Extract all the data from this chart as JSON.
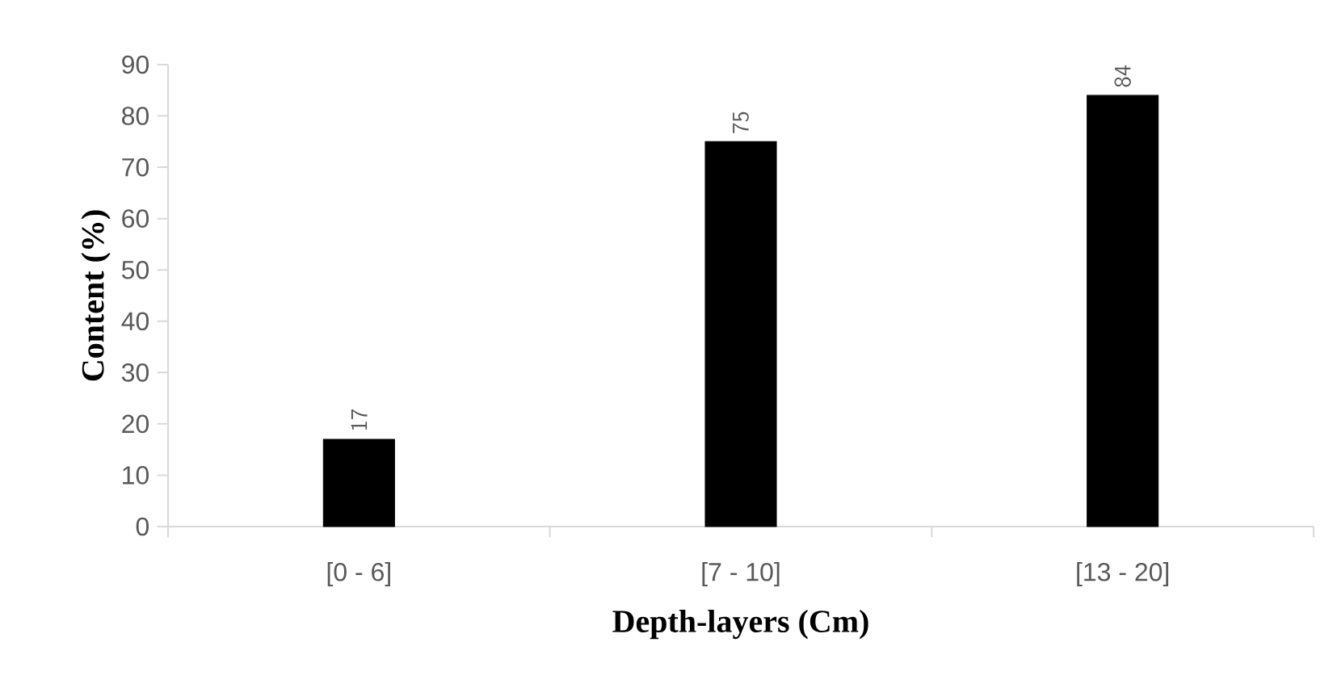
{
  "chart_data": {
    "type": "bar",
    "xlabel": "Depth-layers (Cm)",
    "ylabel": "Content (%)",
    "categories": [
      "[0 - 6]",
      "[7 - 10]",
      "[13 - 20]"
    ],
    "values": [
      17,
      75,
      84
    ],
    "color": "#000000",
    "ylim": [
      0,
      90
    ],
    "yticks": [
      0,
      10,
      20,
      30,
      40,
      50,
      60,
      70,
      80,
      90
    ],
    "data_labels": true
  }
}
